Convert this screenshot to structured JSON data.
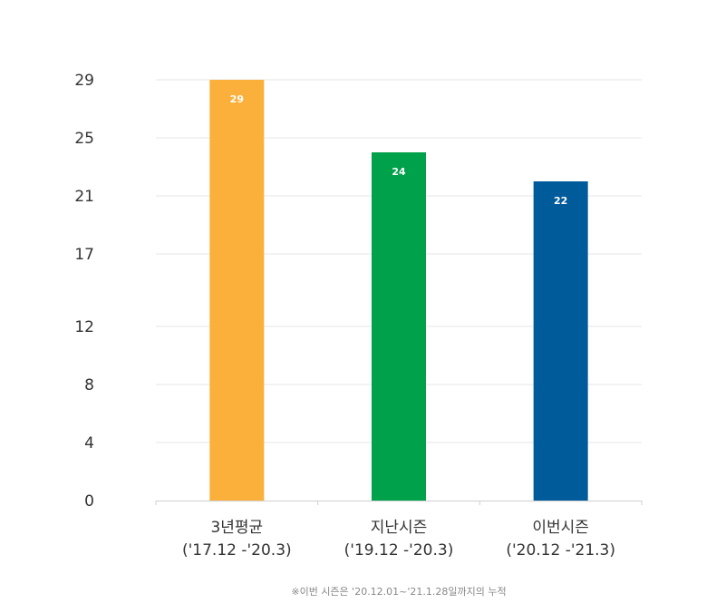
{
  "chart_data": {
    "type": "bar",
    "categories": [
      {
        "line1": "3년평균",
        "line2": "('17.12 -'20.3)"
      },
      {
        "line1": "지난시즌",
        "line2": "('19.12 -'20.3)"
      },
      {
        "line1": "이번시즌",
        "line2": "('20.12 -'21.3)"
      }
    ],
    "values": [
      29,
      24,
      22
    ],
    "data_labels": [
      "29",
      "24",
      "22"
    ],
    "colors": [
      "#fbb03b",
      "#00a14b",
      "#005b9a"
    ],
    "yticks": [
      {
        "value": 0,
        "label": "0"
      },
      {
        "value": 4,
        "label": "4"
      },
      {
        "value": 8,
        "label": "8"
      },
      {
        "value": 12,
        "label": "12"
      },
      {
        "value": 17,
        "label": "17"
      },
      {
        "value": 21,
        "label": "21"
      },
      {
        "value": 25,
        "label": "25"
      },
      {
        "value": 29,
        "label": "29"
      }
    ],
    "ylim": [
      0,
      29
    ],
    "grid": true,
    "footnote": "※이번 시즌은 '20.12.01~'21.1.28일까지의 누적"
  }
}
